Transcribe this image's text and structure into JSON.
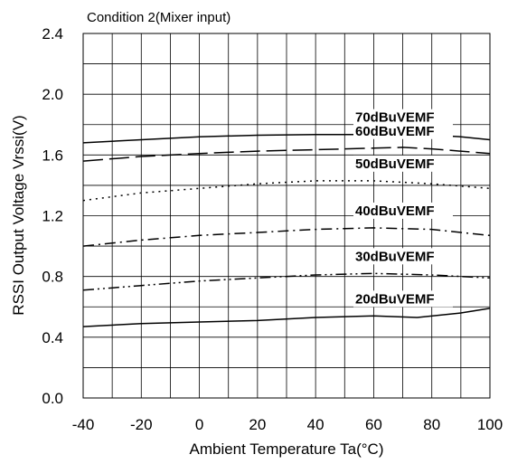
{
  "chart_data": {
    "type": "line",
    "title": "Condition 2(Mixer input)",
    "xlabel": "Ambient Temperature Ta(°C)",
    "ylabel": "RSSI Output Voltage Vrssi(V)",
    "xlim": [
      -40,
      100
    ],
    "ylim": [
      0.0,
      2.4
    ],
    "x_ticks": [
      "-40",
      "-20",
      "0",
      "20",
      "40",
      "60",
      "80",
      "100"
    ],
    "y_ticks": [
      "0.0",
      "0.4",
      "0.8",
      "1.2",
      "1.6",
      "2.0",
      "2.4"
    ],
    "grid": true,
    "series": [
      {
        "name": "70dBuVEMF",
        "line_style": "solid",
        "x": [
          -40,
          -20,
          0,
          20,
          40,
          60,
          80,
          90,
          100
        ],
        "y": [
          1.68,
          1.7,
          1.72,
          1.73,
          1.735,
          1.735,
          1.73,
          1.72,
          1.7
        ]
      },
      {
        "name": "60dBuVEMF",
        "line_style": "long-dash",
        "x": [
          -40,
          -20,
          0,
          20,
          40,
          60,
          70,
          80,
          100
        ],
        "y": [
          1.56,
          1.59,
          1.61,
          1.625,
          1.635,
          1.645,
          1.65,
          1.64,
          1.61
        ]
      },
      {
        "name": "50dBuVEMF",
        "line_style": "dotted",
        "x": [
          -40,
          -20,
          0,
          20,
          40,
          60,
          80,
          100
        ],
        "y": [
          1.3,
          1.35,
          1.38,
          1.41,
          1.43,
          1.43,
          1.41,
          1.38
        ]
      },
      {
        "name": "40dBuVEMF",
        "line_style": "dash-dot",
        "x": [
          -40,
          -20,
          0,
          20,
          40,
          60,
          80,
          90,
          100
        ],
        "y": [
          1.0,
          1.04,
          1.07,
          1.09,
          1.11,
          1.12,
          1.11,
          1.09,
          1.07
        ]
      },
      {
        "name": "30dBuVEMF",
        "line_style": "dash-dot-dot",
        "x": [
          -40,
          -20,
          0,
          20,
          40,
          60,
          80,
          100
        ],
        "y": [
          0.71,
          0.74,
          0.77,
          0.79,
          0.81,
          0.82,
          0.81,
          0.79
        ]
      },
      {
        "name": "20dBuVEMF",
        "line_style": "solid",
        "x": [
          -40,
          -20,
          0,
          20,
          40,
          60,
          75,
          90,
          100
        ],
        "y": [
          0.47,
          0.49,
          0.5,
          0.51,
          0.53,
          0.54,
          0.53,
          0.56,
          0.59
        ]
      }
    ]
  }
}
